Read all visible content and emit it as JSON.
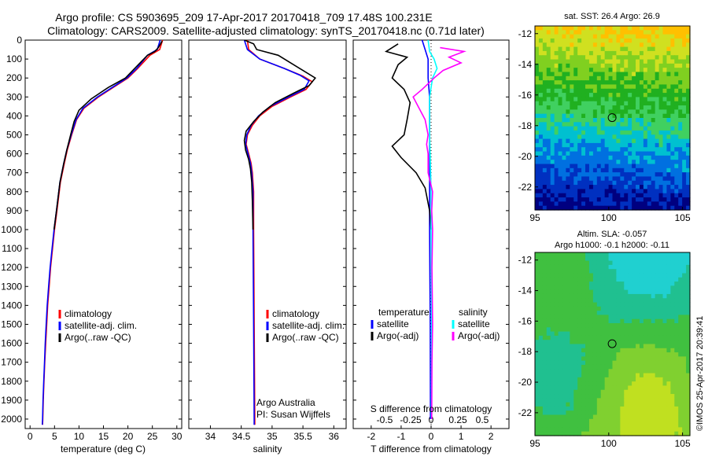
{
  "title_line1": "Argo profile: CS 5903695_209 17-Apr-2017 20170418_709 17.48S 100.231E",
  "title_line2": "Climatology: CARS2009. Satellite-adjusted climatology: synTS_20170418.nc (0.71d later)",
  "chart_data": [
    {
      "type": "line",
      "id": "temperature",
      "xlabel": "temperature (deg C)",
      "ylabel": "",
      "xlim": [
        -1,
        31
      ],
      "ylim": [
        2050,
        0
      ],
      "x_ticks": [
        0,
        5,
        10,
        15,
        20,
        25,
        30
      ],
      "y_ticks": [
        0,
        100,
        200,
        300,
        400,
        500,
        600,
        700,
        800,
        900,
        1000,
        1100,
        1200,
        1300,
        1400,
        1500,
        1600,
        1700,
        1800,
        1900,
        2000
      ],
      "legend_position": "lower-right",
      "series": [
        {
          "name": "climatology",
          "color": "#ff0000",
          "points": [
            [
              27.1,
              0
            ],
            [
              26.5,
              50
            ],
            [
              24.5,
              80
            ],
            [
              22,
              150
            ],
            [
              20,
              200
            ],
            [
              17,
              250
            ],
            [
              14,
              300
            ],
            [
              11,
              360
            ],
            [
              9.5,
              420
            ],
            [
              8.5,
              500
            ],
            [
              7.6,
              580
            ],
            [
              7,
              650
            ],
            [
              6.2,
              750
            ],
            [
              5.5,
              900
            ],
            [
              5,
              1000
            ],
            [
              4.6,
              1100
            ],
            [
              4.2,
              1200
            ],
            [
              3.9,
              1300
            ],
            [
              3.6,
              1400
            ],
            [
              3.4,
              1500
            ],
            [
              3.2,
              1600
            ],
            [
              3,
              1700
            ],
            [
              2.85,
              1800
            ],
            [
              2.7,
              1900
            ],
            [
              2.6,
              2000
            ],
            [
              2.55,
              2030
            ]
          ]
        },
        {
          "name": "satellite-adj. clim.",
          "color": "#0000ff",
          "points": [
            [
              26.6,
              0
            ],
            [
              26,
              50
            ],
            [
              24,
              80
            ],
            [
              21.8,
              150
            ],
            [
              19.8,
              200
            ],
            [
              16.8,
              250
            ],
            [
              13.8,
              300
            ],
            [
              10.8,
              360
            ],
            [
              9.4,
              420
            ],
            [
              8.4,
              500
            ],
            [
              7.5,
              580
            ],
            [
              6.9,
              650
            ],
            [
              6.1,
              750
            ],
            [
              5.4,
              900
            ],
            [
              4.9,
              1000
            ],
            [
              4.5,
              1100
            ],
            [
              4.1,
              1200
            ],
            [
              3.8,
              1300
            ],
            [
              3.5,
              1400
            ],
            [
              3.3,
              1500
            ],
            [
              3.1,
              1600
            ],
            [
              2.95,
              1700
            ],
            [
              2.8,
              1800
            ],
            [
              2.65,
              1900
            ],
            [
              2.55,
              2000
            ],
            [
              2.5,
              2030
            ]
          ]
        },
        {
          "name": "Argo(..raw -QC)",
          "color": "#000000",
          "points": [
            [
              27,
              5
            ],
            [
              26.2,
              40
            ],
            [
              25.5,
              60
            ],
            [
              24,
              80
            ],
            [
              22.5,
              120
            ],
            [
              21,
              160
            ],
            [
              19.5,
              200
            ],
            [
              16,
              250
            ],
            [
              12.5,
              310
            ],
            [
              10,
              370
            ],
            [
              9,
              430
            ],
            [
              8.3,
              500
            ],
            [
              7.5,
              580
            ],
            [
              6.9,
              650
            ],
            [
              6.1,
              750
            ],
            [
              5.4,
              900
            ],
            [
              4.9,
              1000
            ]
          ]
        }
      ],
      "legend": [
        "climatology",
        "satellite-adj. clim.",
        "Argo(..raw -QC)"
      ]
    },
    {
      "type": "line",
      "id": "salinity",
      "xlabel": "salinity",
      "xlim": [
        33.65,
        36.2
      ],
      "ylim": [
        2050,
        0
      ],
      "x_ticks": [
        34,
        34.5,
        35,
        35.5,
        36
      ],
      "x_tick_labels": [
        "34",
        "34.5",
        "35",
        "35.5",
        "36"
      ],
      "legend_position": "lower-right",
      "annotation_lines": [
        "Argo Australia",
        "PI: Susan Wijffels"
      ],
      "series": [
        {
          "name": "climatology",
          "color": "#ff0000",
          "points": [
            [
              34.6,
              0
            ],
            [
              34.62,
              50
            ],
            [
              34.8,
              100
            ],
            [
              35.2,
              150
            ],
            [
              35.5,
              190
            ],
            [
              35.65,
              220
            ],
            [
              35.55,
              260
            ],
            [
              35.3,
              300
            ],
            [
              35.0,
              350
            ],
            [
              34.8,
              400
            ],
            [
              34.68,
              450
            ],
            [
              34.6,
              500
            ],
            [
              34.58,
              550
            ],
            [
              34.62,
              600
            ],
            [
              34.66,
              650
            ],
            [
              34.68,
              700
            ],
            [
              34.7,
              800
            ],
            [
              34.7,
              1000
            ],
            [
              34.71,
              1500
            ],
            [
              34.72,
              2000
            ],
            [
              34.72,
              2030
            ]
          ]
        },
        {
          "name": "satellite-adj. clim.",
          "color": "#0000ff",
          "points": [
            [
              34.55,
              0
            ],
            [
              34.6,
              50
            ],
            [
              34.8,
              100
            ],
            [
              35.2,
              150
            ],
            [
              35.45,
              185
            ],
            [
              35.6,
              215
            ],
            [
              35.52,
              260
            ],
            [
              35.27,
              300
            ],
            [
              34.97,
              350
            ],
            [
              34.78,
              400
            ],
            [
              34.66,
              450
            ],
            [
              34.59,
              500
            ],
            [
              34.57,
              550
            ],
            [
              34.61,
              600
            ],
            [
              34.65,
              650
            ],
            [
              34.67,
              700
            ],
            [
              34.69,
              800
            ],
            [
              34.69,
              1000
            ],
            [
              34.7,
              1500
            ],
            [
              34.71,
              2000
            ],
            [
              34.71,
              2030
            ]
          ]
        },
        {
          "name": "Argo(..raw -QC)",
          "color": "#000000",
          "points": [
            [
              34.55,
              0
            ],
            [
              34.7,
              20
            ],
            [
              34.75,
              50
            ],
            [
              35.1,
              80
            ],
            [
              35.3,
              120
            ],
            [
              35.5,
              160
            ],
            [
              35.7,
              200
            ],
            [
              35.6,
              240
            ],
            [
              35.35,
              280
            ],
            [
              35.05,
              330
            ],
            [
              34.85,
              380
            ],
            [
              34.7,
              430
            ],
            [
              34.58,
              480
            ],
            [
              34.55,
              530
            ],
            [
              34.57,
              580
            ],
            [
              34.62,
              630
            ],
            [
              34.65,
              680
            ],
            [
              34.67,
              750
            ],
            [
              34.68,
              850
            ],
            [
              34.69,
              1000
            ]
          ]
        }
      ],
      "legend": [
        "climatology",
        "satellite-adj. clim.",
        "Argo(..raw -QC)"
      ]
    },
    {
      "type": "line",
      "id": "difference",
      "xlabel_top": "S difference from climatology",
      "xlabel": "T difference from climatology",
      "xlim": [
        -2.6,
        2.6
      ],
      "ylim": [
        2050,
        0
      ],
      "x_ticks": [
        -2,
        -1,
        0,
        1,
        2
      ],
      "x_ticks_top": [
        -0.5,
        -0.25,
        0,
        0.25,
        0.5
      ],
      "x_ticks_top_labels": [
        "-0.5",
        "-0.25",
        "0",
        "0.25",
        "0.5"
      ],
      "legend_temperature_header": "temperature",
      "legend_salinity_header": "salinity",
      "legend_position": "lower-right",
      "series": [
        {
          "name": "satellite",
          "group": "temperature",
          "color": "#0000ff",
          "points": [
            [
              -0.3,
              0
            ],
            [
              -0.2,
              50
            ],
            [
              -0.1,
              100
            ],
            [
              -0.1,
              200
            ],
            [
              -0.05,
              300
            ],
            [
              -0.05,
              500
            ],
            [
              -0.05,
              1000
            ],
            [
              -0.03,
              1500
            ],
            [
              -0.02,
              2000
            ]
          ]
        },
        {
          "name": "Argo(-adj)",
          "group": "temperature",
          "color": "#000000",
          "points": [
            [
              -1.1,
              20
            ],
            [
              -1.5,
              60
            ],
            [
              -0.8,
              90
            ],
            [
              -1.1,
              130
            ],
            [
              -1.3,
              200
            ],
            [
              -0.9,
              260
            ],
            [
              -0.7,
              330
            ],
            [
              -0.8,
              420
            ],
            [
              -0.9,
              500
            ],
            [
              -1.3,
              560
            ],
            [
              -1.0,
              620
            ],
            [
              -0.5,
              700
            ],
            [
              -0.2,
              780
            ],
            [
              -0.05,
              900
            ],
            [
              0,
              1000
            ]
          ]
        },
        {
          "name": "satellite",
          "group": "salinity",
          "color": "#00ffff",
          "points": [
            [
              -0.1,
              0
            ],
            [
              -0.05,
              60
            ],
            [
              0.1,
              100
            ],
            [
              0.2,
              150
            ],
            [
              0.05,
              200
            ],
            [
              -0.05,
              300
            ],
            [
              -0.05,
              500
            ],
            [
              0,
              800
            ],
            [
              0,
              1000
            ],
            [
              0.02,
              1500
            ],
            [
              0.01,
              2000
            ]
          ]
        },
        {
          "name": "Argo(-adj)",
          "group": "salinity",
          "color": "#ff00ff",
          "points": [
            [
              0.3,
              40
            ],
            [
              1.1,
              60
            ],
            [
              0.6,
              90
            ],
            [
              1.0,
              120
            ],
            [
              0.4,
              160
            ],
            [
              0.1,
              200
            ],
            [
              -0.3,
              260
            ],
            [
              -0.6,
              300
            ],
            [
              -0.4,
              360
            ],
            [
              -0.2,
              420
            ],
            [
              -0.1,
              500
            ],
            [
              -0.15,
              550
            ],
            [
              -0.1,
              600
            ],
            [
              -0.1,
              700
            ],
            [
              0.05,
              800
            ],
            [
              0.02,
              900
            ],
            [
              0.05,
              1000
            ],
            [
              0.03,
              1200
            ],
            [
              0.05,
              1500
            ],
            [
              0.03,
              1700
            ],
            [
              0.02,
              2000
            ]
          ]
        }
      ]
    },
    {
      "type": "heatmap",
      "id": "sst_map",
      "title": "sat. SST: 26.4 Argo: 26.9",
      "xlim": [
        95,
        105.5
      ],
      "ylim": [
        -23.5,
        -11.5
      ],
      "x_ticks": [
        95,
        100,
        105
      ],
      "y_ticks": [
        -12,
        -14,
        -16,
        -18,
        -20,
        -22
      ],
      "argo_location": [
        100.23,
        -17.48
      ],
      "palette": [
        "#000080",
        "#0030c0",
        "#0070e0",
        "#00c0d0",
        "#40d060",
        "#20b020",
        "#80d020",
        "#d0e020",
        "#ffc000"
      ]
    },
    {
      "type": "heatmap",
      "id": "sla_map",
      "title": "Altim. SLA: -0.057",
      "subtitle": "Argo h1000: -0.1 h2000: -0.11",
      "xlim": [
        95,
        105.5
      ],
      "ylim": [
        -23.5,
        -11.5
      ],
      "x_ticks": [
        95,
        100,
        105
      ],
      "y_ticks": [
        -12,
        -14,
        -16,
        -18,
        -20,
        -22
      ],
      "argo_location": [
        100.23,
        -17.48
      ],
      "palette": [
        "#20d0d0",
        "#20c090",
        "#40c040",
        "#80d030",
        "#c0e020"
      ]
    }
  ],
  "footer_stamp": "©IMOS 25-Apr-2017 20:39:41"
}
